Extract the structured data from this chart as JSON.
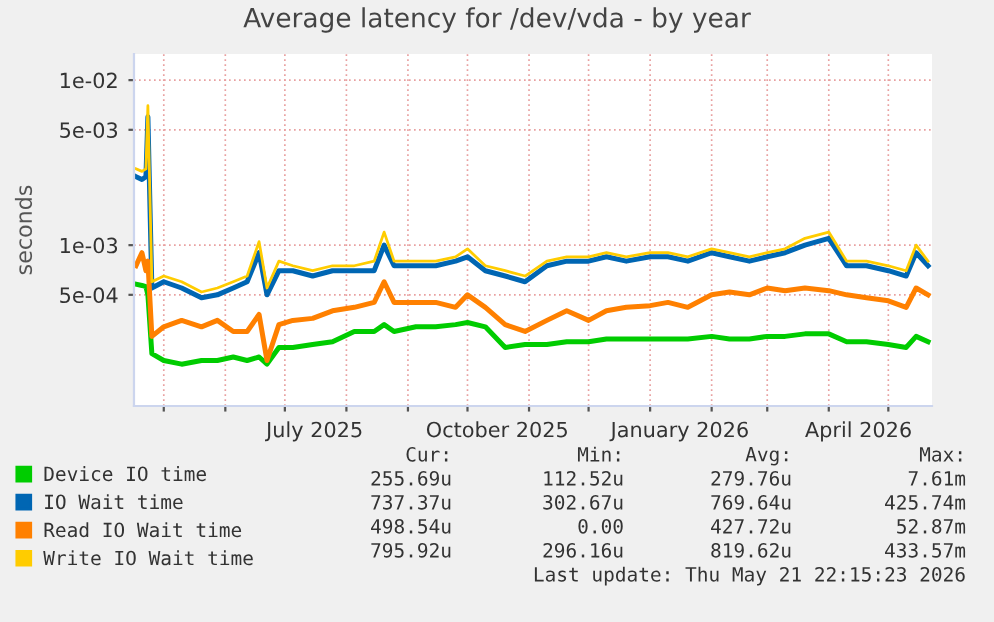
{
  "chart_data": {
    "type": "line",
    "title": "Average latency for /dev/vda - by year",
    "ylabel": "seconds",
    "x": [
      "2025-04-17",
      "2025-04-20",
      "2025-04-22",
      "2025-04-23",
      "2025-04-25",
      "2025-05-01",
      "2025-05-10",
      "2025-05-20",
      "2025-05-28",
      "2025-06-05",
      "2025-06-12",
      "2025-06-18",
      "2025-06-22",
      "2025-06-28",
      "2025-07-05",
      "2025-07-15",
      "2025-07-25",
      "2025-08-05",
      "2025-08-15",
      "2025-08-20",
      "2025-08-25",
      "2025-09-05",
      "2025-09-15",
      "2025-09-25",
      "2025-10-01",
      "2025-10-10",
      "2025-10-20",
      "2025-10-30",
      "2025-11-10",
      "2025-11-20",
      "2025-12-01",
      "2025-12-10",
      "2025-12-20",
      "2026-01-01",
      "2026-01-10",
      "2026-01-20",
      "2026-02-01",
      "2026-02-10",
      "2026-02-20",
      "2026-03-01",
      "2026-03-10",
      "2026-03-20",
      "2026-04-01",
      "2026-04-10",
      "2026-04-20",
      "2026-05-01",
      "2026-05-10",
      "2026-05-15",
      "2026-05-21"
    ],
    "series": [
      {
        "name": "Device IO time",
        "color": "#00cc00",
        "values": [
          0.00058,
          0.00057,
          0.00056,
          0.0005,
          0.00022,
          0.0002,
          0.00019,
          0.0002,
          0.0002,
          0.00021,
          0.0002,
          0.00021,
          0.00019,
          0.00024,
          0.00024,
          0.00025,
          0.00026,
          0.0003,
          0.0003,
          0.00033,
          0.0003,
          0.00032,
          0.00032,
          0.00033,
          0.00034,
          0.00032,
          0.00024,
          0.00025,
          0.00025,
          0.00026,
          0.00026,
          0.00027,
          0.00027,
          0.00027,
          0.00027,
          0.00027,
          0.00028,
          0.00027,
          0.00027,
          0.00028,
          0.00028,
          0.00029,
          0.00029,
          0.00026,
          0.00026,
          0.00025,
          0.00024,
          0.00028,
          0.00026
        ]
      },
      {
        "name": "IO Wait time",
        "color": "#0066b3",
        "values": [
          0.0026,
          0.0025,
          0.0026,
          0.006,
          0.00055,
          0.0006,
          0.00055,
          0.00048,
          0.0005,
          0.00055,
          0.0006,
          0.0009,
          0.0005,
          0.0007,
          0.0007,
          0.00065,
          0.0007,
          0.0007,
          0.0007,
          0.001,
          0.00075,
          0.00075,
          0.00075,
          0.0008,
          0.00085,
          0.0007,
          0.00065,
          0.0006,
          0.00075,
          0.0008,
          0.0008,
          0.00085,
          0.0008,
          0.00085,
          0.00085,
          0.0008,
          0.0009,
          0.00085,
          0.0008,
          0.00085,
          0.0009,
          0.001,
          0.0011,
          0.00075,
          0.00075,
          0.0007,
          0.00065,
          0.0009,
          0.00075
        ]
      },
      {
        "name": "Read IO Wait time",
        "color": "#ff8000",
        "values": [
          0.00075,
          0.0009,
          0.0007,
          0.0008,
          0.00028,
          0.00032,
          0.00035,
          0.00032,
          0.00035,
          0.0003,
          0.0003,
          0.00038,
          0.0002,
          0.00033,
          0.00035,
          0.00036,
          0.0004,
          0.00042,
          0.00045,
          0.0006,
          0.00045,
          0.00045,
          0.00045,
          0.00042,
          0.0005,
          0.00042,
          0.00033,
          0.0003,
          0.00035,
          0.0004,
          0.00035,
          0.0004,
          0.00042,
          0.00043,
          0.00045,
          0.00042,
          0.0005,
          0.00052,
          0.0005,
          0.00055,
          0.00053,
          0.00055,
          0.00053,
          0.0005,
          0.00048,
          0.00046,
          0.00042,
          0.00055,
          0.0005
        ]
      },
      {
        "name": "Write IO Wait time",
        "color": "#ffcc00",
        "values": [
          0.0029,
          0.0028,
          0.0029,
          0.007,
          0.0006,
          0.00065,
          0.0006,
          0.00052,
          0.00055,
          0.0006,
          0.00065,
          0.00105,
          0.00055,
          0.0008,
          0.00075,
          0.0007,
          0.00075,
          0.00075,
          0.0008,
          0.0012,
          0.0008,
          0.0008,
          0.0008,
          0.00085,
          0.00095,
          0.00075,
          0.0007,
          0.00065,
          0.0008,
          0.00085,
          0.00085,
          0.0009,
          0.00085,
          0.0009,
          0.0009,
          0.00085,
          0.00095,
          0.0009,
          0.00085,
          0.0009,
          0.00095,
          0.0011,
          0.0012,
          0.0008,
          0.0008,
          0.00075,
          0.0007,
          0.001,
          0.0008
        ]
      }
    ],
    "log": "y",
    "ylim": [
      0.000106,
      0.0144
    ],
    "yticks": [
      {
        "value": 0.0005,
        "label": "5e-04"
      },
      {
        "value": 0.001,
        "label": "1e-03"
      },
      {
        "value": 0.005,
        "label": "5e-03"
      },
      {
        "value": 0.01,
        "label": "1e-02"
      }
    ],
    "xlim": [
      "2025-04-16",
      "2026-05-23"
    ],
    "xticks": [
      {
        "value": "2025-05-01",
        "label": null
      },
      {
        "value": "2025-06-01",
        "label": null
      },
      {
        "value": "2025-07-01",
        "label": null
      },
      {
        "value": "2025-07-16",
        "label": "July 2025"
      },
      {
        "value": "2025-08-01",
        "label": null
      },
      {
        "value": "2025-09-01",
        "label": null
      },
      {
        "value": "2025-10-01",
        "label": null
      },
      {
        "value": "2025-10-16",
        "label": "October 2025"
      },
      {
        "value": "2025-11-01",
        "label": null
      },
      {
        "value": "2025-12-01",
        "label": null
      },
      {
        "value": "2026-01-01",
        "label": null
      },
      {
        "value": "2026-01-16",
        "label": "January 2026"
      },
      {
        "value": "2026-02-01",
        "label": null
      },
      {
        "value": "2026-03-01",
        "label": null
      },
      {
        "value": "2026-04-01",
        "label": null
      },
      {
        "value": "2026-04-16",
        "label": "April 2026"
      },
      {
        "value": "2026-05-01",
        "label": null
      }
    ],
    "grid": true,
    "legend": "bottom",
    "marker": "none",
    "line_style": "solid",
    "annotations": [
      "Cur:",
      "Min:",
      "Avg:",
      "Max:",
      "255.69u",
      "112.52u",
      "279.76u",
      "7.61m",
      "737.37u",
      "302.67u",
      "769.64u",
      "425.74m",
      "498.54u",
      "0.00",
      "427.72u",
      "52.87m",
      "795.92u",
      "296.16u",
      "819.62u",
      "433.57m",
      "Last update: Thu May 21 22:15:23 2026"
    ]
  }
}
